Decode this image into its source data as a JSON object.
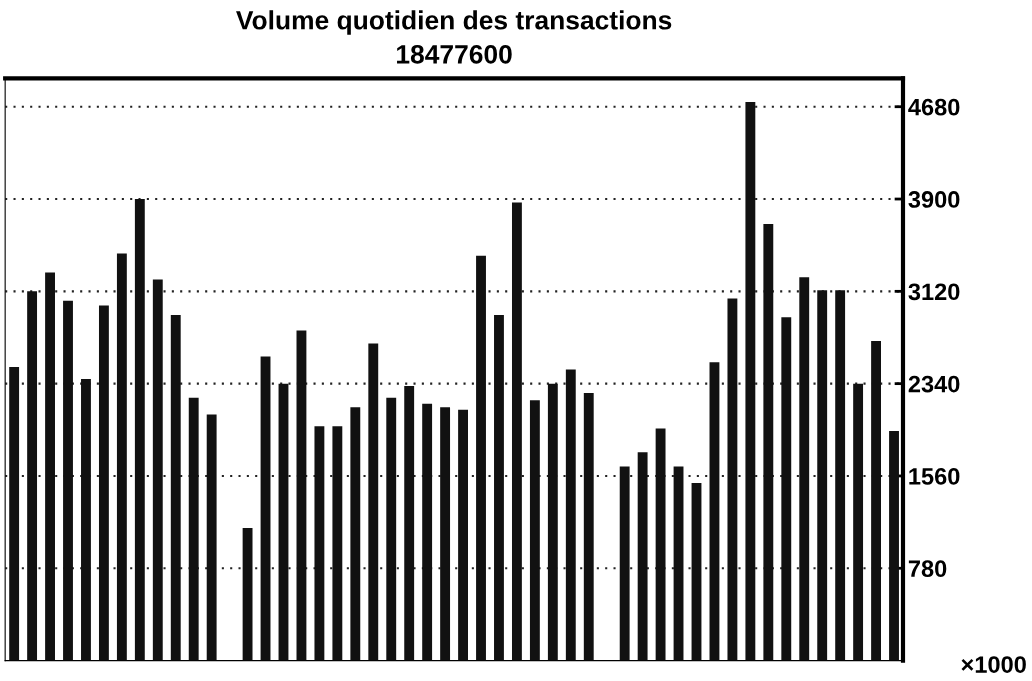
{
  "chart_data": {
    "type": "bar",
    "title": "Volume quotidien des transactions",
    "subtitle": "18477600",
    "categories": [
      null,
      null,
      null,
      null,
      null,
      null,
      null,
      null,
      null,
      null,
      null,
      null,
      null,
      null,
      null,
      null,
      null,
      null,
      null,
      null,
      null,
      null,
      null,
      null,
      null,
      null,
      null,
      null,
      null,
      null,
      null,
      null,
      null,
      null,
      null,
      null,
      null,
      null,
      null,
      null,
      null,
      null,
      null,
      null,
      null,
      null,
      null,
      null,
      null,
      null
    ],
    "values": [
      2480,
      3120,
      3280,
      3040,
      2380,
      3000,
      3440,
      3900,
      3220,
      2920,
      2220,
      2080,
      null,
      1120,
      2570,
      2340,
      2790,
      1980,
      1980,
      2140,
      2680,
      2220,
      2320,
      2170,
      2140,
      2120,
      3420,
      2920,
      3870,
      2200,
      2340,
      2460,
      2260,
      null,
      1640,
      1760,
      1960,
      1640,
      1500,
      2520,
      3060,
      4720,
      3690,
      2900,
      3240,
      3130,
      3130,
      2340,
      2700,
      1940
    ],
    "color": "#111111",
    "ylim": [
      0,
      4920
    ],
    "yticks": [
      780,
      1560,
      2340,
      3120,
      3900,
      4680
    ],
    "tick_labels": "y",
    "grid": "y",
    "annotations": [
      "×1000"
    ]
  }
}
